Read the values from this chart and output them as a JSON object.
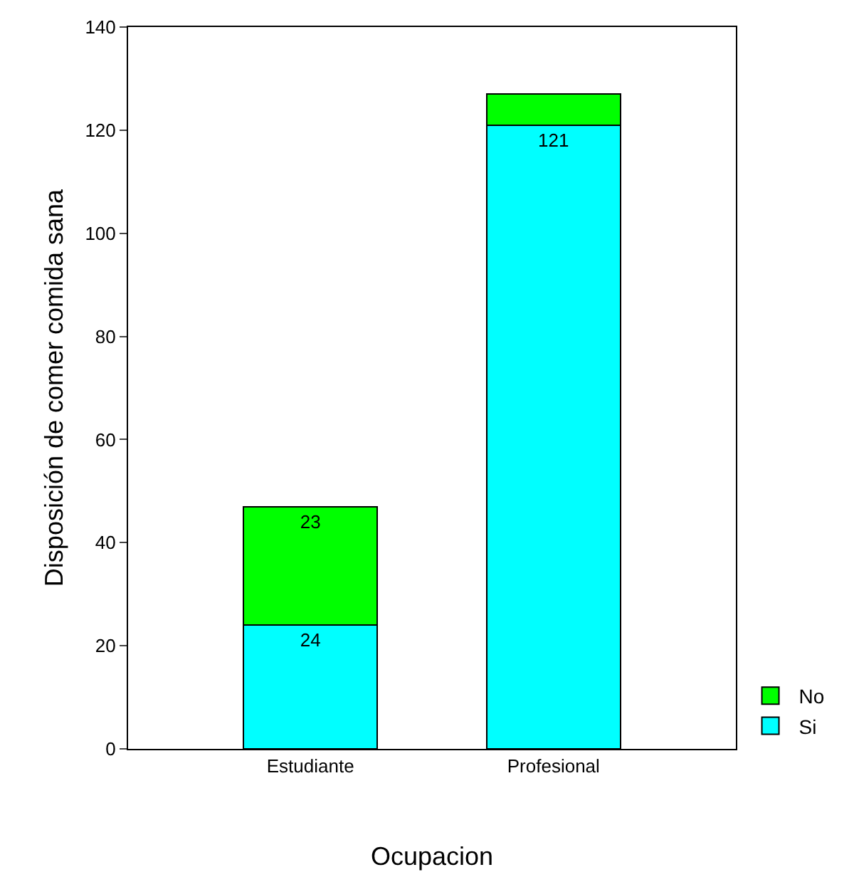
{
  "chart_data": {
    "type": "bar",
    "stacked": true,
    "xlabel": "Ocupacion",
    "ylabel": "Disposición de comer comida sana",
    "categories": [
      "Estudiante",
      "Profesional"
    ],
    "series": [
      {
        "name": "Si",
        "color": "#00ffff",
        "values": [
          24,
          121
        ],
        "value_labels": [
          "24",
          "121"
        ]
      },
      {
        "name": "No",
        "color": "#00ff00",
        "values": [
          23,
          6
        ],
        "value_labels": [
          "23",
          null
        ]
      }
    ],
    "ylim": [
      0,
      140
    ],
    "yticks": [
      0,
      20,
      40,
      60,
      80,
      100,
      120,
      140
    ],
    "grid": false,
    "legend": "bottom right"
  }
}
